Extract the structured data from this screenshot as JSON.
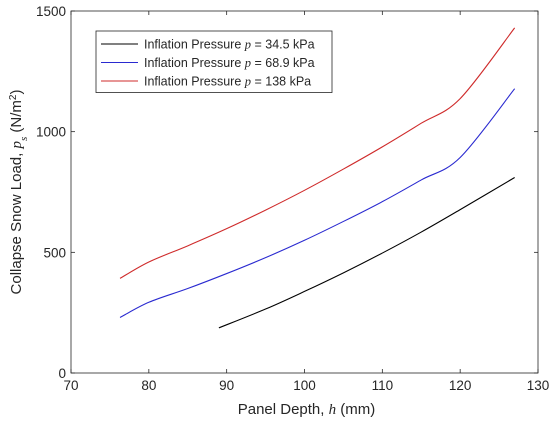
{
  "chart_data": {
    "type": "line",
    "xlabel": "Panel Depth, ",
    "xlabel_symbol": "h",
    "xlabel_unit": " (mm)",
    "ylabel": "Collapse Snow Load, ",
    "ylabel_symbol": "p",
    "ylabel_subscript": "s",
    "ylabel_unit": " (N/m",
    "ylabel_unit_exp": "2",
    "ylabel_unit_close": ")",
    "xlim": [
      70,
      130
    ],
    "ylim": [
      0,
      1500
    ],
    "xticks": [
      70,
      80,
      90,
      100,
      110,
      120,
      130
    ],
    "yticks": [
      0,
      500,
      1000,
      1500
    ],
    "grid": false,
    "legend_position": "top-left",
    "series": [
      {
        "name": "Inflation Pressure ",
        "name_symbol": "p",
        "name_value": " = 34.5 kPa",
        "color": "#000000",
        "x": [
          89,
          95,
          100,
          105,
          110,
          115,
          120,
          127
        ],
        "y": [
          187,
          265,
          338,
          415,
          497,
          584,
          677,
          810
        ]
      },
      {
        "name": "Inflation Pressure ",
        "name_symbol": "p",
        "name_value": " = 68.9 kPa",
        "color": "#2a2ad0",
        "x": [
          76.3,
          80,
          85,
          90,
          95,
          100,
          105,
          110,
          115,
          120,
          127
        ],
        "y": [
          230,
          293,
          350,
          412,
          478,
          550,
          628,
          710,
          800,
          893,
          1178
        ]
      },
      {
        "name": "Inflation Pressure ",
        "name_symbol": "p",
        "name_value": " = 138 kPa",
        "color": "#cf2b2b",
        "x": [
          76.3,
          80,
          85,
          90,
          95,
          100,
          105,
          110,
          115,
          120,
          127
        ],
        "y": [
          392,
          460,
          527,
          598,
          675,
          757,
          845,
          937,
          1035,
          1137,
          1430
        ]
      }
    ]
  }
}
